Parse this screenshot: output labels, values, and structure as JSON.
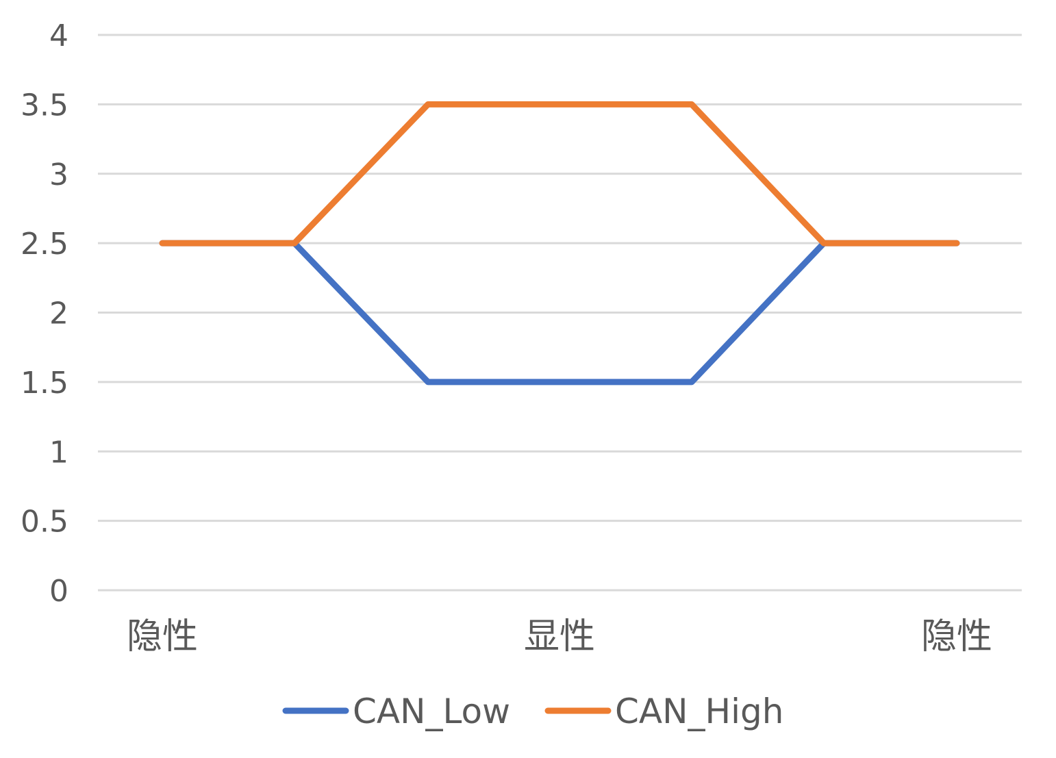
{
  "chart_data": {
    "type": "line",
    "x_categories": [
      "隐性",
      "",
      "",
      "显性",
      "",
      "",
      "隐性"
    ],
    "x_tick_labels": [
      "隐性",
      "显性",
      "隐性"
    ],
    "ylim": [
      0,
      4
    ],
    "y_ticks": [
      "0",
      "0.5",
      "1",
      "1.5",
      "2",
      "2.5",
      "3",
      "3.5",
      "4"
    ],
    "grid": true,
    "legend_position": "bottom",
    "series": [
      {
        "name": "CAN_Low",
        "color": "#4472c4",
        "values": [
          2.5,
          2.5,
          1.5,
          1.5,
          1.5,
          2.5,
          2.5
        ]
      },
      {
        "name": "CAN_High",
        "color": "#ed7d31",
        "values": [
          2.5,
          2.5,
          3.5,
          3.5,
          3.5,
          2.5,
          2.5
        ]
      }
    ]
  }
}
